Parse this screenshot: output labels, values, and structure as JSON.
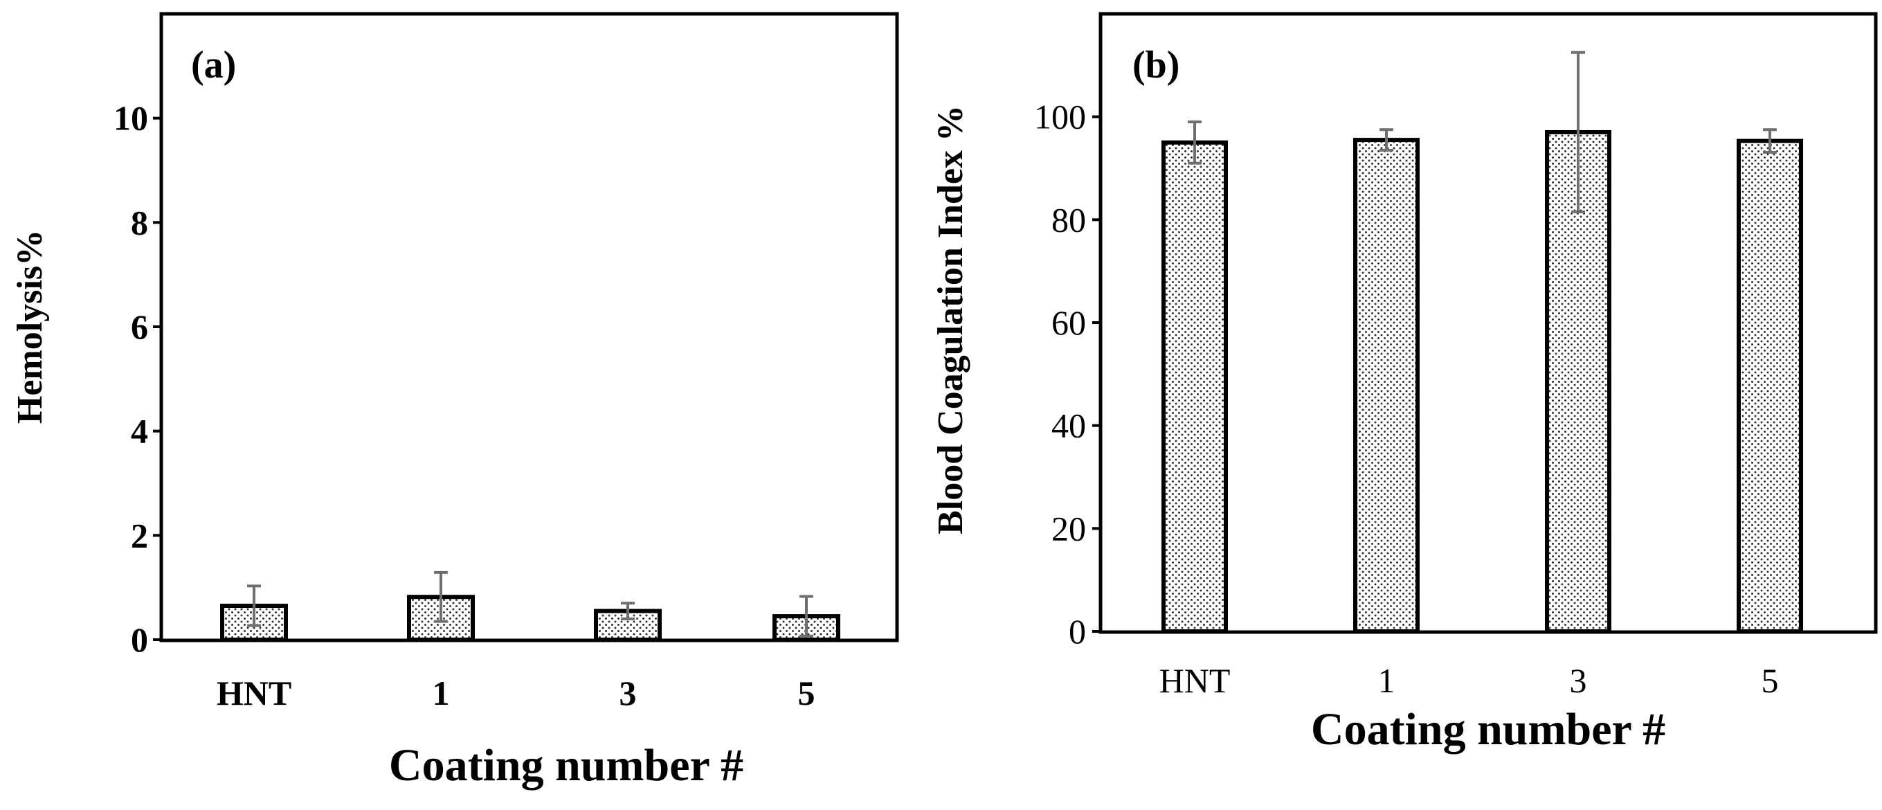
{
  "chart_data": [
    {
      "type": "bar",
      "panel_label": "(a)",
      "title": "",
      "categories": [
        "HNT",
        "1",
        "3",
        "5"
      ],
      "values": [
        0.65,
        0.82,
        0.55,
        0.45
      ],
      "errors": [
        0.38,
        0.47,
        0.15,
        0.38
      ],
      "ylim": [
        0,
        12
      ],
      "yticks": [
        0,
        2,
        4,
        6,
        8,
        10
      ],
      "xlabel": "Coating number #",
      "ylabel": "Hemolysis%",
      "grid": false,
      "tick_font_bold": true
    },
    {
      "type": "bar",
      "panel_label": "(b)",
      "title": "",
      "categories": [
        "HNT",
        "1",
        "3",
        "5"
      ],
      "values": [
        95,
        95.5,
        97,
        95.3
      ],
      "errors": [
        4,
        2,
        15.5,
        2.2
      ],
      "ylim": [
        0,
        120
      ],
      "yticks": [
        0,
        20,
        40,
        60,
        80,
        100
      ],
      "xlabel": "Coating number #",
      "ylabel": "Blood Coagulation Index %",
      "grid": false,
      "tick_font_bold": false
    }
  ]
}
